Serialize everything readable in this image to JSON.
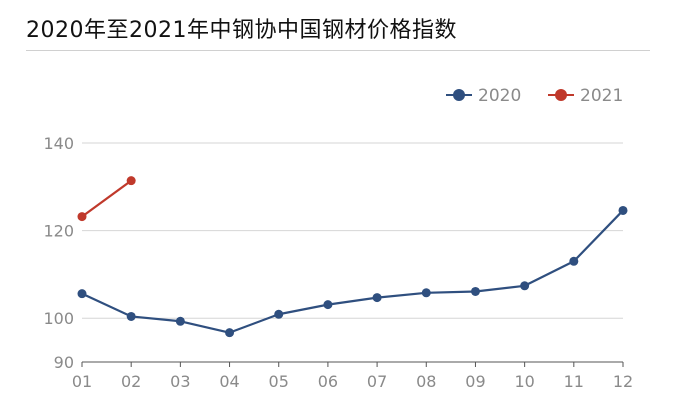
{
  "chart_data": {
    "type": "line",
    "title": "2020年至2021年中钢协中国钢材价格指数",
    "xlabel": "",
    "ylabel": "",
    "categories": [
      "01",
      "02",
      "03",
      "04",
      "05",
      "06",
      "07",
      "08",
      "09",
      "10",
      "11",
      "12"
    ],
    "y_ticks": [
      90,
      100,
      120,
      140
    ],
    "ylim": [
      90,
      140
    ],
    "grid": true,
    "legend_position": "top-right",
    "series": [
      {
        "name": "2020",
        "color": "#2f4f7f",
        "values": [
          105.6,
          100.4,
          99.3,
          96.7,
          100.9,
          103.1,
          104.7,
          105.8,
          106.1,
          107.4,
          113.0,
          124.6
        ]
      },
      {
        "name": "2021",
        "color": "#c0392b",
        "values": [
          123.2,
          131.4,
          null,
          null,
          null,
          null,
          null,
          null,
          null,
          null,
          null,
          null
        ]
      }
    ]
  }
}
